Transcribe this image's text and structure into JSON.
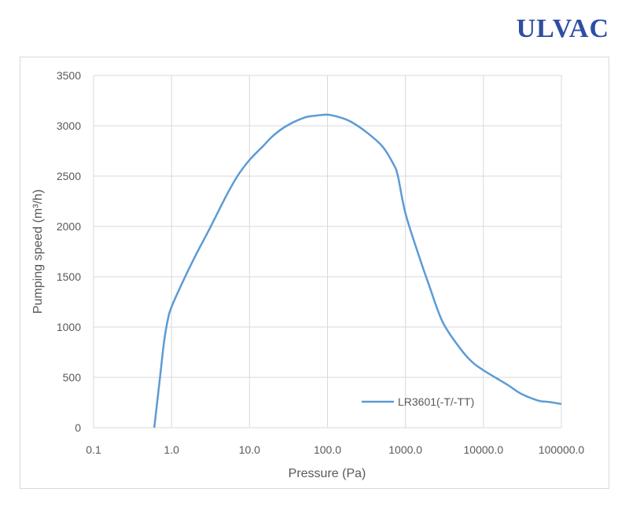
{
  "brand": {
    "name": "ULVAC"
  },
  "chart_data": {
    "type": "line",
    "title": "",
    "xlabel": "Pressure (Pa)",
    "ylabel": "Pumping speed (m³/h)",
    "x_scale": "log",
    "xlim": [
      0.1,
      100000
    ],
    "ylim": [
      0,
      3500
    ],
    "x_ticks": [
      "0.1",
      "1.0",
      "10.0",
      "100.0",
      "1000.0",
      "10000.0",
      "100000.0"
    ],
    "y_ticks": [
      "0",
      "500",
      "1000",
      "1500",
      "2000",
      "2500",
      "3000",
      "3500"
    ],
    "grid": true,
    "legend_position": "bottom-right",
    "series": [
      {
        "name": "LR3601(-T/-TT)",
        "color": "#5b9bd5",
        "x": [
          0.6,
          0.7,
          0.8,
          0.9,
          1.0,
          1.3,
          2.0,
          3.0,
          5.0,
          7.0,
          10,
          15,
          20,
          30,
          50,
          70,
          100,
          150,
          200,
          300,
          500,
          700,
          800,
          1000,
          1500,
          2000,
          3000,
          5000,
          7000,
          10000,
          20000,
          30000,
          50000,
          70000,
          100000
        ],
        "y": [
          0,
          450,
          850,
          1080,
          1200,
          1400,
          1700,
          1960,
          2300,
          2500,
          2660,
          2800,
          2900,
          3000,
          3080,
          3100,
          3110,
          3080,
          3040,
          2950,
          2800,
          2620,
          2500,
          2130,
          1700,
          1420,
          1050,
          790,
          660,
          570,
          430,
          340,
          270,
          255,
          235
        ]
      }
    ]
  }
}
